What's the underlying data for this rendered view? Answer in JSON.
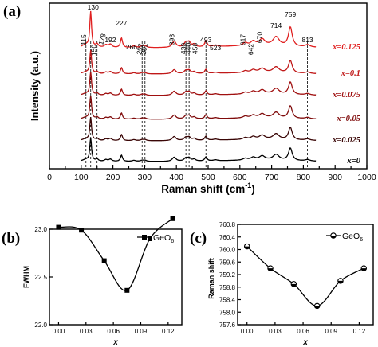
{
  "chart_data": [
    {
      "id": "a",
      "type": "line",
      "panel_label": "(a)",
      "xlabel": "Raman shift (cm",
      "xlabel_sup": "-1",
      "xlabel_end": ")",
      "ylabel": "Intensity (a.u.)",
      "xlim": [
        0,
        1000
      ],
      "xticks": [
        "0",
        "100",
        "200",
        "300",
        "400",
        "500",
        "600",
        "700",
        "800",
        "900",
        "1000"
      ],
      "series": [
        {
          "name": "x=0.125",
          "color": "#e02020"
        },
        {
          "name": "x=0.1",
          "color": "#c01818"
        },
        {
          "name": "x=0.075",
          "color": "#a01010"
        },
        {
          "name": "x=0.05",
          "color": "#800c0c"
        },
        {
          "name": "x=0.025",
          "color": "#3a0606"
        },
        {
          "name": "x=0",
          "color": "#000000"
        }
      ],
      "peaks": [
        "115",
        "130",
        "150",
        "178",
        "192",
        "227",
        "266",
        "292",
        "301",
        "393",
        "430",
        "440",
        "456",
        "493",
        "523",
        "617",
        "642",
        "670",
        "714",
        "759",
        "813"
      ],
      "dashed_lines_at": [
        115,
        130,
        150,
        292,
        301,
        430,
        440,
        493,
        813
      ]
    },
    {
      "id": "b",
      "type": "line",
      "panel_label": "(b)",
      "xlabel": "x",
      "ylabel": "FWHM",
      "legend": "GeO",
      "legend_sub": "6",
      "legend_position": "top-right",
      "xlim": [
        -0.01,
        0.135
      ],
      "ylim": [
        22.0,
        23.0
      ],
      "xticks": [
        "0.00",
        "0.03",
        "0.06",
        "0.09",
        "0.12"
      ],
      "yticks": [
        "22.0",
        "22.5",
        "23.0"
      ],
      "series": [
        {
          "x": [
            0.0,
            0.025,
            0.05,
            0.075,
            0.1,
            0.125
          ],
          "y": [
            23.02,
            22.99,
            22.67,
            22.36,
            22.9,
            23.11
          ]
        }
      ]
    },
    {
      "id": "c",
      "type": "line",
      "panel_label": "(c)",
      "xlabel": "x",
      "ylabel": "Raman shift",
      "legend": "GeO",
      "legend_sub": "6",
      "legend_position": "top-right",
      "xlim": [
        -0.01,
        0.135
      ],
      "ylim": [
        757.6,
        760.8
      ],
      "xticks": [
        "0.00",
        "0.03",
        "0.06",
        "0.09",
        "0.12"
      ],
      "yticks": [
        "757.6",
        "758.0",
        "758.4",
        "758.8",
        "759.2",
        "759.6",
        "760.0",
        "760.4",
        "760.8"
      ],
      "series": [
        {
          "x": [
            0.0,
            0.025,
            0.05,
            0.075,
            0.1,
            0.125
          ],
          "y": [
            760.1,
            759.4,
            758.9,
            758.2,
            759.0,
            759.4
          ]
        }
      ]
    }
  ]
}
